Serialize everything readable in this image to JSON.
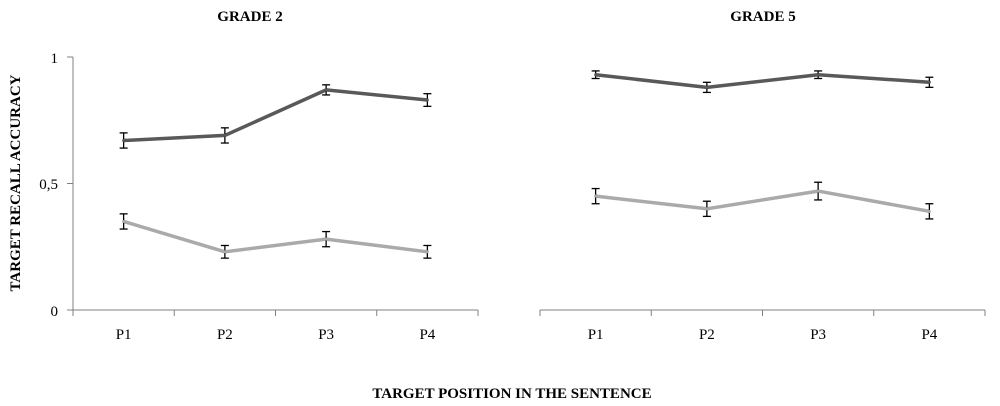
{
  "chart_data": {
    "type": "line",
    "xlabel": "TARGET POSITION IN THE SENTENCE",
    "ylabel": "TARGET RECALL ACCURACY",
    "ylim": [
      0,
      1
    ],
    "yticks": [
      0,
      0.5,
      1
    ],
    "ytick_labels": [
      "0",
      "0,5",
      "1"
    ],
    "grid": false,
    "legend": "none",
    "error_bars": true,
    "categories": [
      "P1",
      "P2",
      "P3",
      "P4"
    ],
    "panels": [
      {
        "title": "GRADE 2",
        "series": [
          {
            "color": "#595959",
            "values": [
              0.67,
              0.69,
              0.87,
              0.83
            ],
            "error": [
              0.03,
              0.03,
              0.02,
              0.025
            ]
          },
          {
            "color": "#aaaaaa",
            "values": [
              0.35,
              0.23,
              0.28,
              0.23
            ],
            "error": [
              0.03,
              0.025,
              0.03,
              0.025
            ]
          }
        ]
      },
      {
        "title": "GRADE 5",
        "series": [
          {
            "color": "#595959",
            "values": [
              0.93,
              0.88,
              0.93,
              0.9
            ],
            "error": [
              0.015,
              0.02,
              0.015,
              0.02
            ]
          },
          {
            "color": "#aaaaaa",
            "values": [
              0.45,
              0.4,
              0.47,
              0.39
            ],
            "error": [
              0.03,
              0.03,
              0.035,
              0.03
            ]
          }
        ]
      }
    ]
  }
}
